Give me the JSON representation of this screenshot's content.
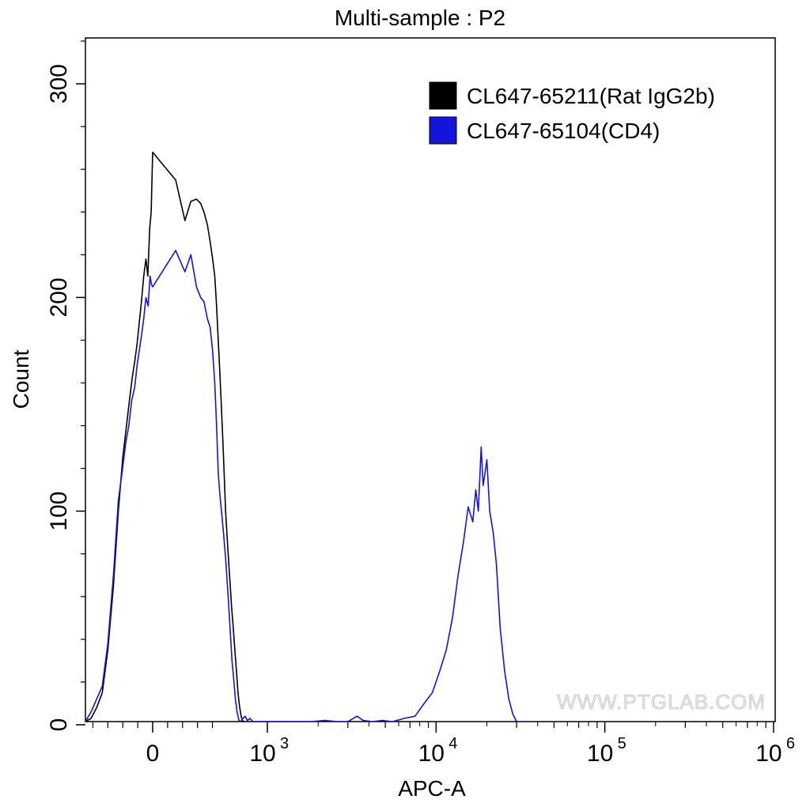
{
  "chart_data": {
    "type": "line",
    "title": "Multi-sample : P2",
    "xlabel": "APC-A",
    "ylabel": "Count",
    "xscale": "biexponential",
    "ylim": [
      0,
      320
    ],
    "y_ticks": [
      {
        "value": 0,
        "label": "0"
      },
      {
        "value": 100,
        "label": "100"
      },
      {
        "value": 200,
        "label": "200"
      },
      {
        "value": 300,
        "label": "300"
      }
    ],
    "x_ticks": [
      {
        "value": 0,
        "base": "0",
        "exp": ""
      },
      {
        "value": 1000,
        "base": "10",
        "exp": "3"
      },
      {
        "value": 10000,
        "base": "10",
        "exp": "4"
      },
      {
        "value": 100000,
        "base": "10",
        "exp": "5"
      },
      {
        "value": 1000000,
        "base": "10",
        "exp": "6"
      }
    ],
    "legend_position": "top-right",
    "watermark": "WWW.PTGLAB.COM",
    "series": [
      {
        "name": "CL647-65211(Rat IgG2b)",
        "color": "#000000",
        "points": [
          [
            -180,
            0
          ],
          [
            -165,
            3
          ],
          [
            -150,
            8
          ],
          [
            -135,
            15
          ],
          [
            -120,
            35
          ],
          [
            -105,
            65
          ],
          [
            -92,
            100
          ],
          [
            -80,
            125
          ],
          [
            -70,
            140
          ],
          [
            -62,
            152
          ],
          [
            -55,
            162
          ],
          [
            -48,
            170
          ],
          [
            -42,
            178
          ],
          [
            -36,
            188
          ],
          [
            -30,
            198
          ],
          [
            -24,
            210
          ],
          [
            -18,
            218
          ],
          [
            -13,
            210
          ],
          [
            -8,
            232
          ],
          [
            -4,
            240
          ],
          [
            0,
            268
          ],
          [
            3,
            255
          ],
          [
            6,
            236
          ],
          [
            9,
            245
          ],
          [
            13,
            246
          ],
          [
            17,
            244
          ],
          [
            21,
            240
          ],
          [
            26,
            234
          ],
          [
            31,
            226
          ],
          [
            36,
            218
          ],
          [
            41,
            210
          ],
          [
            46,
            196
          ],
          [
            51,
            180
          ],
          [
            56,
            165
          ],
          [
            62,
            148
          ],
          [
            70,
            126
          ],
          [
            80,
            100
          ],
          [
            92,
            82
          ],
          [
            105,
            66
          ],
          [
            115,
            55
          ],
          [
            128,
            45
          ],
          [
            140,
            35
          ],
          [
            155,
            25
          ],
          [
            170,
            15
          ],
          [
            185,
            9
          ],
          [
            205,
            4
          ],
          [
            230,
            1
          ],
          [
            260,
            0
          ]
        ]
      },
      {
        "name": "CL647-65104(CD4)",
        "color": "#1414dc",
        "points": [
          [
            -180,
            0
          ],
          [
            -165,
            6
          ],
          [
            -150,
            12
          ],
          [
            -135,
            18
          ],
          [
            -120,
            38
          ],
          [
            -105,
            70
          ],
          [
            -92,
            105
          ],
          [
            -82,
            118
          ],
          [
            -72,
            132
          ],
          [
            -64,
            140
          ],
          [
            -56,
            152
          ],
          [
            -48,
            158
          ],
          [
            -42,
            168
          ],
          [
            -36,
            175
          ],
          [
            -30,
            182
          ],
          [
            -24,
            190
          ],
          [
            -18,
            200
          ],
          [
            -12,
            196
          ],
          [
            -7,
            210
          ],
          [
            -3,
            206
          ],
          [
            0,
            205
          ],
          [
            3,
            222
          ],
          [
            6,
            212
          ],
          [
            9,
            220
          ],
          [
            13,
            205
          ],
          [
            17,
            200
          ],
          [
            21,
            198
          ],
          [
            26,
            190
          ],
          [
            31,
            186
          ],
          [
            36,
            175
          ],
          [
            41,
            160
          ],
          [
            46,
            140
          ],
          [
            51,
            118
          ],
          [
            56,
            108
          ],
          [
            62,
            100
          ],
          [
            70,
            90
          ],
          [
            80,
            78
          ],
          [
            92,
            62
          ],
          [
            105,
            45
          ],
          [
            118,
            30
          ],
          [
            130,
            22
          ],
          [
            145,
            12
          ],
          [
            160,
            6
          ],
          [
            180,
            2
          ],
          [
            200,
            0
          ],
          [
            230,
            3
          ],
          [
            260,
            4
          ],
          [
            300,
            2
          ],
          [
            350,
            3
          ],
          [
            420,
            1
          ],
          [
            500,
            0
          ],
          [
            1200,
            0
          ],
          [
            1500,
            1
          ],
          [
            1800,
            0
          ],
          [
            2200,
            2
          ],
          [
            2600,
            0
          ],
          [
            3000,
            1
          ],
          [
            3400,
            4
          ],
          [
            3700,
            2
          ],
          [
            4200,
            0
          ],
          [
            4800,
            2
          ],
          [
            5500,
            1
          ],
          [
            6500,
            3
          ],
          [
            7500,
            4
          ],
          [
            8500,
            10
          ],
          [
            9500,
            15
          ],
          [
            10500,
            25
          ],
          [
            11500,
            35
          ],
          [
            12500,
            50
          ],
          [
            13500,
            70
          ],
          [
            14500,
            85
          ],
          [
            15500,
            102
          ],
          [
            16500,
            95
          ],
          [
            17200,
            110
          ],
          [
            17800,
            100
          ],
          [
            18500,
            130
          ],
          [
            19000,
            112
          ],
          [
            19500,
            118
          ],
          [
            20000,
            124
          ],
          [
            20800,
            100
          ],
          [
            21800,
            90
          ],
          [
            22800,
            75
          ],
          [
            24000,
            45
          ],
          [
            25500,
            25
          ],
          [
            27000,
            12
          ],
          [
            28500,
            5
          ],
          [
            30000,
            1
          ],
          [
            31500,
            0
          ]
        ]
      }
    ]
  }
}
